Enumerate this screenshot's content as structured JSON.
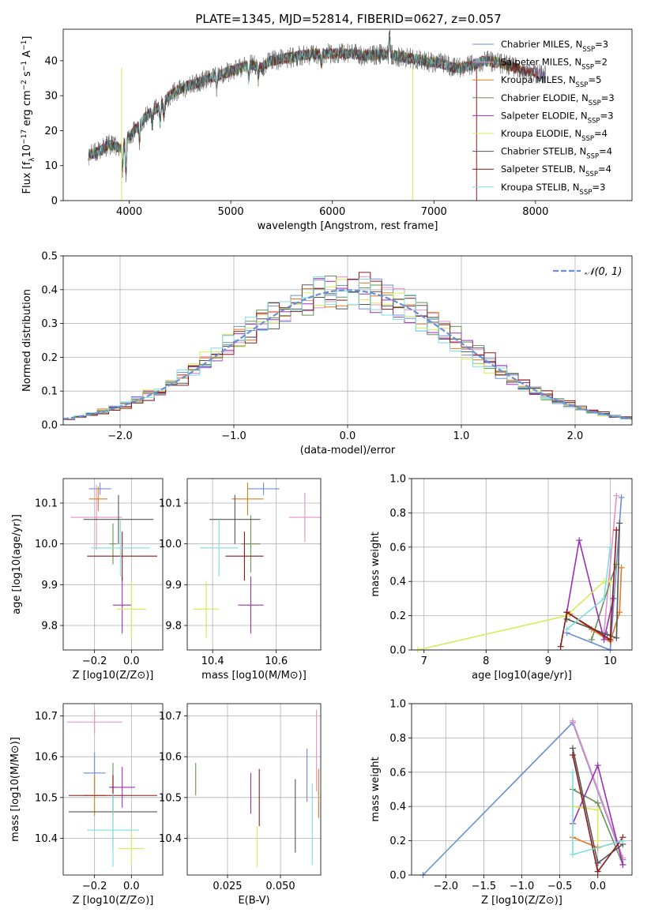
{
  "title": "PLATE=1345, MJD=52814, FIBERID=0627, z=0.057",
  "colors": {
    "Chabrier MILES": "#6a8fd6",
    "Salpeter MILES": "#e68fc7",
    "Kroupa MILES": "#e07a1f",
    "Chabrier ELODIE": "#6a8f5a",
    "Salpeter ELODIE": "#9b30b8",
    "Kroupa ELODIE": "#d4ec55",
    "Chabrier STELIB": "#555555",
    "Salpeter STELIB": "#8b1a1a",
    "Kroupa STELIB": "#7fdede",
    "gaussian": "#6a8fd6",
    "grid": "#b0b0b0"
  },
  "chart_data": [
    {
      "type": "line",
      "name": "spectrum",
      "xlabel": "wavelength [Angstrom, rest frame]",
      "ylabel": "Flux [f_λ 10^-17 erg cm^-2 s^-1 A^-1]",
      "xlim": [
        3350,
        8950
      ],
      "ylim": [
        0,
        49
      ],
      "xticks": [
        4000,
        5000,
        6000,
        7000,
        8000
      ],
      "yticks": [
        0,
        10,
        20,
        30,
        40
      ],
      "grid": false,
      "legend_placement": "top-right",
      "legend": [
        {
          "name": "Chabrier MILES",
          "label": "Chabrier MILES, N",
          "sub": "SSP",
          "eq": "=3"
        },
        {
          "name": "Salpeter MILES",
          "label": "Salpeter MILES, N",
          "sub": "SSP",
          "eq": "=2"
        },
        {
          "name": "Kroupa MILES",
          "label": "Kroupa MILES, N",
          "sub": "SSP",
          "eq": "=5"
        },
        {
          "name": "Chabrier ELODIE",
          "label": "Chabrier ELODIE, N",
          "sub": "SSP",
          "eq": "=3"
        },
        {
          "name": "Salpeter ELODIE",
          "label": "Salpeter ELODIE, N",
          "sub": "SSP",
          "eq": "=3"
        },
        {
          "name": "Kroupa ELODIE",
          "label": "Kroupa ELODIE, N",
          "sub": "SSP",
          "eq": "=4"
        },
        {
          "name": "Chabrier STELIB",
          "label": "Chabrier STELIB, N",
          "sub": "SSP",
          "eq": "=4"
        },
        {
          "name": "Salpeter STELIB",
          "label": "Salpeter STELIB, N",
          "sub": "SSP",
          "eq": "=4"
        },
        {
          "name": "Kroupa STELIB",
          "label": "Kroupa STELIB, N",
          "sub": "SSP",
          "eq": "=3"
        }
      ],
      "continuum": [
        [
          3600,
          13
        ],
        [
          3700,
          14
        ],
        [
          3800,
          16
        ],
        [
          3900,
          15
        ],
        [
          4000,
          18
        ],
        [
          4100,
          22
        ],
        [
          4200,
          25
        ],
        [
          4300,
          27
        ],
        [
          4400,
          30
        ],
        [
          4500,
          32
        ],
        [
          4600,
          33
        ],
        [
          4700,
          34
        ],
        [
          4800,
          35
        ],
        [
          4900,
          36
        ],
        [
          5000,
          37
        ],
        [
          5100,
          38
        ],
        [
          5200,
          39
        ],
        [
          5300,
          38
        ],
        [
          5400,
          40
        ],
        [
          5500,
          40.5
        ],
        [
          5600,
          41
        ],
        [
          5700,
          41.5
        ],
        [
          5800,
          41.8
        ],
        [
          5900,
          42
        ],
        [
          6000,
          42
        ],
        [
          6100,
          42.2
        ],
        [
          6200,
          42
        ],
        [
          6300,
          41.5
        ],
        [
          6400,
          41.6
        ],
        [
          6500,
          41.8
        ],
        [
          6600,
          41.5
        ],
        [
          6700,
          41
        ],
        [
          6800,
          40.5
        ],
        [
          6900,
          40
        ],
        [
          7000,
          39.5
        ],
        [
          7100,
          39
        ],
        [
          7200,
          38
        ],
        [
          7300,
          38
        ],
        [
          7400,
          39
        ],
        [
          7500,
          40
        ],
        [
          7600,
          39.5
        ],
        [
          7700,
          39
        ],
        [
          7800,
          38
        ],
        [
          7900,
          37
        ],
        [
          8000,
          36.5
        ],
        [
          8100,
          36
        ]
      ],
      "absorption_features": [
        [
          3934,
          7
        ],
        [
          3968,
          9
        ],
        [
          4102,
          5
        ],
        [
          4226,
          4
        ],
        [
          4304,
          5
        ],
        [
          4340,
          4
        ],
        [
          4861,
          3
        ],
        [
          5175,
          4
        ],
        [
          5270,
          3
        ],
        [
          5890,
          3
        ],
        [
          6563,
          -6
        ]
      ],
      "spikes": [
        {
          "x": 3925,
          "y": 0,
          "series": "Kroupa ELODIE"
        },
        {
          "x": 6790,
          "y": 0,
          "series": "Kroupa ELODIE"
        },
        {
          "x": 7420,
          "y": 0,
          "series": "Salpeter STELIB"
        }
      ]
    },
    {
      "type": "histogram",
      "name": "residuals",
      "xlabel": "(data-model)/error",
      "ylabel": "Normed distribution",
      "xlim": [
        -2.5,
        2.5
      ],
      "ylim": [
        0,
        0.5
      ],
      "xticks": [
        -2,
        -1,
        0,
        1,
        2
      ],
      "yticks": [
        0.0,
        0.1,
        0.2,
        0.3,
        0.4,
        0.5
      ],
      "grid": true,
      "legend_placement": "top-right",
      "legend_label": "𝒩(0, 1)",
      "bin_width": 0.1,
      "bin_start": -2.5,
      "series_offsets": [
        0.01,
        -0.015,
        0.02,
        -0.01,
        0.015,
        0.03,
        -0.02,
        -0.03,
        0.025
      ]
    },
    {
      "type": "errorbar",
      "name": "age-vs-Z",
      "xlabel": "Z [log10(Z/Z⊙)]",
      "ylabel": "age  [log10(age/yr)]",
      "xlim": [
        -0.37,
        0.17
      ],
      "ylim": [
        9.74,
        10.16
      ],
      "xticks": [
        -0.2,
        0.0
      ],
      "yticks": [
        9.8,
        9.9,
        10.0,
        10.1
      ],
      "grid": true,
      "points": [
        {
          "series": "Chabrier MILES",
          "x": -0.17,
          "y": 10.135,
          "xerr": 0.06,
          "yerr": 0.015
        },
        {
          "series": "Salpeter MILES",
          "x": -0.19,
          "y": 10.065,
          "xerr": 0.14,
          "yerr": 0.08
        },
        {
          "series": "Kroupa MILES",
          "x": -0.18,
          "y": 10.11,
          "xerr": 0.05,
          "yerr": 0.03
        },
        {
          "series": "Chabrier ELODIE",
          "x": -0.1,
          "y": 10.0,
          "xerr": 0.02,
          "yerr": 0.05
        },
        {
          "series": "Salpeter ELODIE",
          "x": -0.05,
          "y": 9.85,
          "xerr": 0.05,
          "yerr": 0.07
        },
        {
          "series": "Kroupa ELODIE",
          "x": 0.0,
          "y": 9.84,
          "xerr": 0.08,
          "yerr": 0.07
        },
        {
          "series": "Chabrier STELIB",
          "x": -0.07,
          "y": 10.06,
          "xerr": 0.19,
          "yerr": 0.06
        },
        {
          "series": "Salpeter STELIB",
          "x": -0.05,
          "y": 9.97,
          "xerr": 0.19,
          "yerr": 0.06
        },
        {
          "series": "Kroupa STELIB",
          "x": -0.06,
          "y": 9.99,
          "xerr": 0.16,
          "yerr": 0.07
        }
      ]
    },
    {
      "type": "errorbar",
      "name": "age-vs-mass",
      "xlabel": "mass [log10(M/M⊙)]",
      "ylabel": "",
      "xlim": [
        10.32,
        10.74
      ],
      "ylim": [
        9.74,
        10.16
      ],
      "xticks": [
        10.4,
        10.6
      ],
      "yticks": [
        9.8,
        9.9,
        10.0,
        10.1
      ],
      "grid": true,
      "points": [
        {
          "series": "Chabrier MILES",
          "x": 10.56,
          "y": 10.135,
          "xerr": 0.05,
          "yerr": 0.015
        },
        {
          "series": "Salpeter MILES",
          "x": 10.69,
          "y": 10.065,
          "xerr": 0.05,
          "yerr": 0.06
        },
        {
          "series": "Kroupa MILES",
          "x": 10.51,
          "y": 10.11,
          "xerr": 0.05,
          "yerr": 0.04
        },
        {
          "series": "Chabrier ELODIE",
          "x": 10.52,
          "y": 10.0,
          "xerr": 0.03,
          "yerr": 0.07
        },
        {
          "series": "Salpeter ELODIE",
          "x": 10.52,
          "y": 9.85,
          "xerr": 0.04,
          "yerr": 0.07
        },
        {
          "series": "Kroupa ELODIE",
          "x": 10.38,
          "y": 9.84,
          "xerr": 0.04,
          "yerr": 0.07
        },
        {
          "series": "Chabrier STELIB",
          "x": 10.47,
          "y": 10.06,
          "xerr": 0.08,
          "yerr": 0.06
        },
        {
          "series": "Salpeter STELIB",
          "x": 10.5,
          "y": 9.97,
          "xerr": 0.06,
          "yerr": 0.06
        },
        {
          "series": "Kroupa STELIB",
          "x": 10.42,
          "y": 9.99,
          "xerr": 0.06,
          "yerr": 0.07
        }
      ]
    },
    {
      "type": "line",
      "name": "mass-weight-vs-age",
      "xlabel": "age  [log10(age/yr)]",
      "ylabel": "mass weight",
      "xlim": [
        6.8,
        10.35
      ],
      "ylim": [
        0,
        1.0
      ],
      "xticks": [
        7,
        8,
        9,
        10
      ],
      "yticks": [
        0.0,
        0.2,
        0.4,
        0.6,
        0.8,
        1.0
      ],
      "grid": true,
      "series": [
        {
          "name": "Chabrier MILES",
          "x": [
            9.3,
            10.0,
            10.18
          ],
          "y": [
            0.1,
            0.0,
            0.89
          ]
        },
        {
          "name": "Salpeter MILES",
          "x": [
            9.9,
            10.1
          ],
          "y": [
            0.1,
            0.9
          ]
        },
        {
          "name": "Kroupa MILES",
          "x": [
            9.35,
            9.7,
            10.0,
            10.15,
            10.18
          ],
          "y": [
            0.21,
            0.12,
            0.05,
            0.22,
            0.48
          ]
        },
        {
          "name": "Chabrier ELODIE",
          "x": [
            9.7,
            10.0,
            10.1
          ],
          "y": [
            0.06,
            0.4,
            0.5
          ]
        },
        {
          "name": "Salpeter ELODIE",
          "x": [
            9.3,
            9.5,
            9.9,
            10.05
          ],
          "y": [
            0.22,
            0.64,
            0.06,
            0.3
          ]
        },
        {
          "name": "Kroupa ELODIE",
          "x": [
            6.9,
            9.3,
            9.9,
            10.0
          ],
          "y": [
            0.0,
            0.2,
            0.4,
            0.4
          ]
        },
        {
          "name": "Chabrier STELIB",
          "x": [
            9.3,
            9.95,
            10.1,
            10.15
          ],
          "y": [
            0.18,
            0.09,
            0.07,
            0.74
          ]
        },
        {
          "name": "Salpeter STELIB",
          "x": [
            9.2,
            9.3,
            10.0,
            10.1
          ],
          "y": [
            0.02,
            0.22,
            0.06,
            0.7
          ]
        },
        {
          "name": "Kroupa STELIB",
          "x": [
            9.3,
            9.9,
            10.0
          ],
          "y": [
            0.12,
            0.3,
            0.6
          ]
        }
      ]
    },
    {
      "type": "errorbar",
      "name": "mass-vs-Z",
      "xlabel": "Z [log10(Z/Z⊙)]",
      "ylabel": "mass [log10(M/M⊙)]",
      "xlim": [
        -0.37,
        0.17
      ],
      "ylim": [
        10.31,
        10.73
      ],
      "xticks": [
        -0.2,
        0.0
      ],
      "yticks": [
        10.4,
        10.5,
        10.6,
        10.7
      ],
      "grid": true,
      "points": [
        {
          "series": "Chabrier MILES",
          "x": -0.2,
          "y": 10.56,
          "xerr": 0.06,
          "yerr": 0.05
        },
        {
          "series": "Salpeter MILES",
          "x": -0.2,
          "y": 10.685,
          "xerr": 0.15,
          "yerr": 0.03
        },
        {
          "series": "Kroupa MILES",
          "x": -0.2,
          "y": 10.505,
          "xerr": 0.06,
          "yerr": 0.05
        },
        {
          "series": "Chabrier ELODIE",
          "x": -0.1,
          "y": 10.525,
          "xerr": 0.02,
          "yerr": 0.06
        },
        {
          "series": "Salpeter ELODIE",
          "x": -0.05,
          "y": 10.525,
          "xerr": 0.07,
          "yerr": 0.05
        },
        {
          "series": "Kroupa ELODIE",
          "x": 0.0,
          "y": 10.375,
          "xerr": 0.07,
          "yerr": 0.04
        },
        {
          "series": "Chabrier STELIB",
          "x": -0.1,
          "y": 10.465,
          "xerr": 0.24,
          "yerr": 0.09
        },
        {
          "series": "Salpeter STELIB",
          "x": -0.1,
          "y": 10.505,
          "xerr": 0.24,
          "yerr": 0.05
        },
        {
          "series": "Kroupa STELIB",
          "x": -0.1,
          "y": 10.42,
          "xerr": 0.14,
          "yerr": 0.09
        }
      ]
    },
    {
      "type": "errorbar",
      "name": "mass-vs-EBV",
      "xlabel": "E(B-V)",
      "ylabel": "",
      "xlim": [
        0.006,
        0.069
      ],
      "ylim": [
        10.31,
        10.73
      ],
      "xticks": [
        0.025,
        0.05
      ],
      "yticks": [
        10.4,
        10.5,
        10.6,
        10.7
      ],
      "grid": true,
      "points": [
        {
          "series": "Chabrier MILES",
          "x": 0.0625,
          "y": 10.555,
          "xerr": 0.0,
          "yerr": 0.065
        },
        {
          "series": "Salpeter MILES",
          "x": 0.067,
          "y": 10.615,
          "xerr": 0.0,
          "yerr": 0.1
        },
        {
          "series": "Kroupa MILES",
          "x": 0.068,
          "y": 10.51,
          "xerr": 0.0,
          "yerr": 0.06
        },
        {
          "series": "Chabrier ELODIE",
          "x": 0.01,
          "y": 10.545,
          "xerr": 0.0,
          "yerr": 0.04
        },
        {
          "series": "Salpeter ELODIE",
          "x": 0.036,
          "y": 10.51,
          "xerr": 0.0,
          "yerr": 0.05
        },
        {
          "series": "Kroupa ELODIE",
          "x": 0.039,
          "y": 10.38,
          "xerr": 0.0,
          "yerr": 0.05
        },
        {
          "series": "Chabrier STELIB",
          "x": 0.057,
          "y": 10.455,
          "xerr": 0.0,
          "yerr": 0.09
        },
        {
          "series": "Salpeter STELIB",
          "x": 0.04,
          "y": 10.5,
          "xerr": 0.0,
          "yerr": 0.07
        },
        {
          "series": "Kroupa STELIB",
          "x": 0.065,
          "y": 10.435,
          "xerr": 0.0,
          "yerr": 0.1
        }
      ]
    },
    {
      "type": "line",
      "name": "mass-weight-vs-Z",
      "xlabel": "Z [log10(Z/Z⊙)]",
      "ylabel": "mass weight",
      "xlim": [
        -2.45,
        0.45
      ],
      "ylim": [
        0,
        1.0
      ],
      "xticks": [
        -2.0,
        -1.5,
        -1.0,
        -0.5,
        0.0
      ],
      "yticks": [
        0.0,
        0.2,
        0.4,
        0.6,
        0.8,
        1.0
      ],
      "grid": true,
      "series": [
        {
          "name": "Chabrier MILES",
          "x": [
            -2.3,
            -0.33,
            0.33
          ],
          "y": [
            0.0,
            0.89,
            0.09
          ]
        },
        {
          "name": "Salpeter MILES",
          "x": [
            -0.33,
            0.33
          ],
          "y": [
            0.9,
            0.1
          ]
        },
        {
          "name": "Kroupa MILES",
          "x": [
            -0.33,
            0.0,
            0.33
          ],
          "y": [
            0.22,
            0.16,
            0.2
          ]
        },
        {
          "name": "Chabrier ELODIE",
          "x": [
            -0.33,
            0.0,
            0.33
          ],
          "y": [
            0.5,
            0.42,
            0.06
          ]
        },
        {
          "name": "Salpeter ELODIE",
          "x": [
            -0.33,
            0.0,
            0.33
          ],
          "y": [
            0.3,
            0.64,
            0.06
          ]
        },
        {
          "name": "Kroupa ELODIE",
          "x": [
            -0.33,
            0.0,
            0.0
          ],
          "y": [
            0.4,
            0.38,
            0.2
          ]
        },
        {
          "name": "Chabrier STELIB",
          "x": [
            -0.33,
            0.0,
            0.33
          ],
          "y": [
            0.74,
            0.07,
            0.18
          ]
        },
        {
          "name": "Salpeter STELIB",
          "x": [
            -0.33,
            0.0,
            0.33
          ],
          "y": [
            0.7,
            0.02,
            0.22
          ]
        },
        {
          "name": "Kroupa STELIB",
          "x": [
            -0.33,
            -0.33,
            0.33
          ],
          "y": [
            0.6,
            0.12,
            0.2
          ]
        }
      ]
    }
  ]
}
